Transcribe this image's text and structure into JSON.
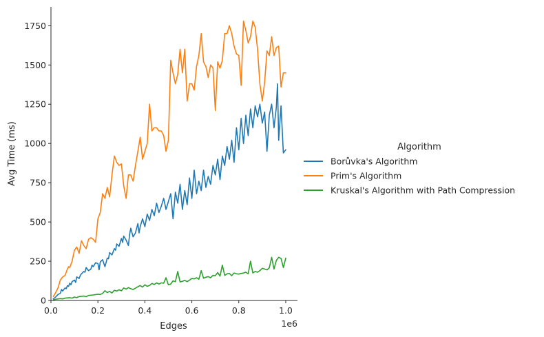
{
  "chart_data": {
    "type": "line",
    "xlabel": "Edges",
    "ylabel": "Avg Time (ms)",
    "x_offset_label": "1e6",
    "xlim": [
      0,
      1.05
    ],
    "ylim": [
      0,
      1870
    ],
    "xticks": [
      0.0,
      0.2,
      0.4,
      0.6,
      0.8,
      1.0
    ],
    "xtick_labels": [
      "0.0",
      "0.2",
      "0.4",
      "0.6",
      "0.8",
      "1.0"
    ],
    "yticks": [
      0,
      250,
      500,
      750,
      1000,
      1250,
      1500,
      1750
    ],
    "ytick_labels": [
      "0",
      "250",
      "500",
      "750",
      "1000",
      "1250",
      "1500",
      "1750"
    ],
    "grid": false,
    "legend_title": "Algorithm",
    "legend_position": "right-outside",
    "series": [
      {
        "name": "Borůvka's Algorithm",
        "color": "#1f77b4",
        "x": [
          0.01,
          0.02,
          0.025,
          0.03,
          0.04,
          0.045,
          0.05,
          0.06,
          0.065,
          0.07,
          0.075,
          0.08,
          0.085,
          0.09,
          0.1,
          0.105,
          0.11,
          0.12,
          0.125,
          0.13,
          0.14,
          0.145,
          0.15,
          0.16,
          0.17,
          0.175,
          0.18,
          0.19,
          0.2,
          0.205,
          0.21,
          0.22,
          0.23,
          0.24,
          0.245,
          0.25,
          0.26,
          0.27,
          0.275,
          0.28,
          0.29,
          0.3,
          0.305,
          0.31,
          0.32,
          0.33,
          0.335,
          0.34,
          0.35,
          0.36,
          0.37,
          0.375,
          0.38,
          0.39,
          0.4,
          0.41,
          0.42,
          0.43,
          0.44,
          0.45,
          0.46,
          0.47,
          0.48,
          0.49,
          0.5,
          0.51,
          0.52,
          0.53,
          0.54,
          0.55,
          0.56,
          0.57,
          0.58,
          0.59,
          0.6,
          0.61,
          0.62,
          0.63,
          0.64,
          0.65,
          0.66,
          0.67,
          0.68,
          0.69,
          0.7,
          0.71,
          0.72,
          0.73,
          0.74,
          0.75,
          0.76,
          0.77,
          0.78,
          0.79,
          0.8,
          0.81,
          0.82,
          0.83,
          0.84,
          0.85,
          0.86,
          0.87,
          0.88,
          0.89,
          0.9,
          0.91,
          0.92,
          0.93,
          0.94,
          0.95,
          0.96,
          0.965,
          0.97,
          0.98,
          0.99,
          1.0
        ],
        "values": [
          10,
          22,
          30,
          38,
          45,
          70,
          60,
          80,
          75,
          95,
          90,
          110,
          100,
          120,
          130,
          115,
          150,
          140,
          160,
          170,
          185,
          180,
          210,
          190,
          200,
          225,
          215,
          240,
          235,
          195,
          245,
          260,
          215,
          270,
          265,
          305,
          290,
          330,
          320,
          360,
          345,
          395,
          370,
          410,
          385,
          350,
          420,
          460,
          405,
          430,
          490,
          430,
          470,
          520,
          470,
          550,
          510,
          580,
          540,
          620,
          560,
          600,
          650,
          580,
          630,
          680,
          520,
          690,
          620,
          740,
          580,
          700,
          610,
          780,
          650,
          830,
          680,
          760,
          700,
          830,
          720,
          790,
          740,
          860,
          800,
          900,
          770,
          920,
          860,
          980,
          900,
          1020,
          880,
          1100,
          960,
          1160,
          1000,
          1180,
          1050,
          1220,
          1100,
          1240,
          1170,
          1250,
          1130,
          1200,
          950,
          1180,
          1250,
          1100,
          1230,
          1380,
          1020,
          1240,
          940,
          960
        ]
      },
      {
        "name": "Prim's Algorithm",
        "color": "#ff7f0e",
        "x": [
          0.01,
          0.02,
          0.03,
          0.04,
          0.05,
          0.06,
          0.07,
          0.075,
          0.08,
          0.09,
          0.1,
          0.11,
          0.12,
          0.13,
          0.14,
          0.15,
          0.16,
          0.17,
          0.18,
          0.19,
          0.2,
          0.21,
          0.22,
          0.23,
          0.24,
          0.25,
          0.26,
          0.27,
          0.28,
          0.29,
          0.3,
          0.31,
          0.32,
          0.33,
          0.34,
          0.35,
          0.36,
          0.37,
          0.38,
          0.39,
          0.4,
          0.41,
          0.42,
          0.43,
          0.44,
          0.45,
          0.46,
          0.47,
          0.48,
          0.49,
          0.5,
          0.51,
          0.52,
          0.53,
          0.54,
          0.55,
          0.56,
          0.57,
          0.58,
          0.59,
          0.6,
          0.61,
          0.62,
          0.63,
          0.64,
          0.65,
          0.66,
          0.67,
          0.68,
          0.69,
          0.7,
          0.71,
          0.72,
          0.73,
          0.74,
          0.75,
          0.76,
          0.77,
          0.78,
          0.79,
          0.8,
          0.81,
          0.82,
          0.83,
          0.84,
          0.85,
          0.86,
          0.87,
          0.88,
          0.89,
          0.9,
          0.91,
          0.92,
          0.93,
          0.94,
          0.95,
          0.96,
          0.97,
          0.98,
          0.99,
          1.0
        ],
        "values": [
          25,
          50,
          80,
          130,
          150,
          160,
          200,
          215,
          210,
          250,
          320,
          340,
          300,
          380,
          350,
          330,
          390,
          400,
          390,
          370,
          520,
          560,
          680,
          650,
          720,
          660,
          800,
          920,
          880,
          860,
          870,
          730,
          650,
          800,
          800,
          760,
          860,
          950,
          1040,
          900,
          950,
          1000,
          1250,
          1080,
          1100,
          1100,
          1080,
          1080,
          1050,
          950,
          1020,
          1530,
          1450,
          1380,
          1440,
          1600,
          1450,
          1600,
          1270,
          1380,
          1380,
          1340,
          1490,
          1560,
          1700,
          1520,
          1490,
          1420,
          1500,
          1480,
          1210,
          1520,
          1480,
          1530,
          1700,
          1700,
          1750,
          1700,
          1620,
          1570,
          1560,
          1370,
          1780,
          1720,
          1640,
          1680,
          1780,
          1740,
          1600,
          1380,
          1270,
          1390,
          1590,
          1560,
          1680,
          1560,
          1610,
          1620,
          1360,
          1450,
          1450
        ]
      },
      {
        "name": "Kruskal's Algorithm with Path Compression",
        "color": "#2ca02c",
        "x": [
          0.01,
          0.02,
          0.04,
          0.05,
          0.06,
          0.08,
          0.09,
          0.1,
          0.11,
          0.12,
          0.14,
          0.15,
          0.16,
          0.18,
          0.2,
          0.21,
          0.22,
          0.23,
          0.24,
          0.25,
          0.26,
          0.27,
          0.28,
          0.29,
          0.3,
          0.31,
          0.32,
          0.33,
          0.34,
          0.35,
          0.36,
          0.37,
          0.38,
          0.39,
          0.4,
          0.41,
          0.42,
          0.43,
          0.44,
          0.45,
          0.46,
          0.47,
          0.48,
          0.49,
          0.5,
          0.51,
          0.52,
          0.53,
          0.54,
          0.55,
          0.56,
          0.57,
          0.58,
          0.59,
          0.6,
          0.61,
          0.62,
          0.63,
          0.64,
          0.65,
          0.66,
          0.67,
          0.68,
          0.69,
          0.7,
          0.71,
          0.72,
          0.73,
          0.74,
          0.75,
          0.76,
          0.77,
          0.78,
          0.79,
          0.8,
          0.81,
          0.82,
          0.83,
          0.84,
          0.85,
          0.86,
          0.87,
          0.88,
          0.89,
          0.9,
          0.91,
          0.92,
          0.93,
          0.94,
          0.95,
          0.96,
          0.97,
          0.98,
          0.99,
          1.0
        ],
        "values": [
          3,
          8,
          12,
          10,
          15,
          18,
          15,
          22,
          18,
          25,
          28,
          24,
          32,
          35,
          40,
          38,
          45,
          62,
          50,
          58,
          48,
          65,
          60,
          68,
          62,
          80,
          72,
          82,
          75,
          70,
          78,
          88,
          95,
          85,
          100,
          90,
          96,
          108,
          102,
          112,
          105,
          112,
          110,
          145,
          100,
          105,
          125,
          120,
          185,
          118,
          122,
          128,
          120,
          130,
          140,
          138,
          145,
          135,
          190,
          142,
          148,
          152,
          145,
          160,
          158,
          178,
          155,
          225,
          160,
          170,
          172,
          158,
          175,
          170,
          168,
          172,
          175,
          180,
          170,
          250,
          175,
          185,
          180,
          190,
          205,
          200,
          195,
          208,
          275,
          200,
          255,
          275,
          268,
          210,
          270
        ]
      }
    ]
  }
}
